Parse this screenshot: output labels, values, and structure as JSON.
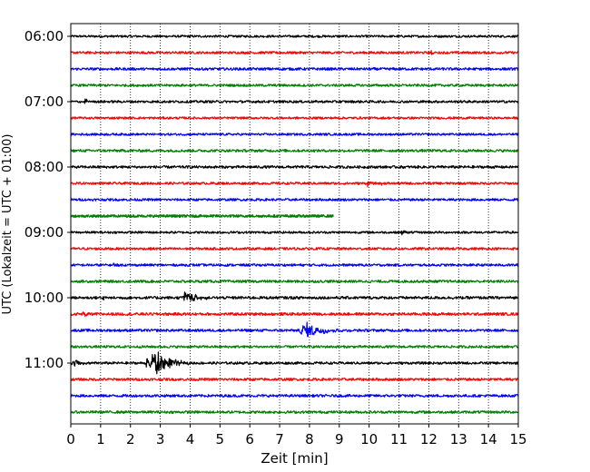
{
  "chart_data": {
    "type": "line",
    "title": "",
    "xlabel": "Zeit  [min]",
    "ylabel": "UTC (Lokalzeit = UTC + 01:00)",
    "xlim": [
      0,
      15
    ],
    "x_ticks": [
      0,
      1,
      2,
      3,
      4,
      5,
      6,
      7,
      8,
      9,
      10,
      11,
      12,
      13,
      14,
      15
    ],
    "y_tick_labels": [
      {
        "label": "06:00",
        "trace": 0
      },
      {
        "label": "07:00",
        "trace": 4
      },
      {
        "label": "08:00",
        "trace": 8
      },
      {
        "label": "09:00",
        "trace": 12
      },
      {
        "label": "10:00",
        "trace": 16
      },
      {
        "label": "11:00",
        "trace": 20
      }
    ],
    "grid": "vertical-dotted",
    "trace_minutes": 15,
    "colors": [
      "#000000",
      "#ff0000",
      "#0000ff",
      "#008000"
    ],
    "series": [
      {
        "start": "06:00",
        "end_min": 15,
        "noise": 1.2,
        "events": []
      },
      {
        "start": "06:15",
        "end_min": 15,
        "noise": 1.3,
        "events": [
          {
            "t": 12.1,
            "amp": 3,
            "dur": 0.2
          }
        ]
      },
      {
        "start": "06:30",
        "end_min": 15,
        "noise": 1.4,
        "events": []
      },
      {
        "start": "06:45",
        "end_min": 15,
        "noise": 1.3,
        "events": []
      },
      {
        "start": "07:00",
        "end_min": 15,
        "noise": 1.3,
        "events": [
          {
            "t": 0.45,
            "amp": 4,
            "dur": 0.4
          }
        ]
      },
      {
        "start": "07:15",
        "end_min": 15,
        "noise": 1.2,
        "events": []
      },
      {
        "start": "07:30",
        "end_min": 15,
        "noise": 1.2,
        "events": []
      },
      {
        "start": "07:45",
        "end_min": 15,
        "noise": 1.4,
        "events": []
      },
      {
        "start": "08:00",
        "end_min": 15,
        "noise": 1.4,
        "events": []
      },
      {
        "start": "08:15",
        "end_min": 15,
        "noise": 1.3,
        "events": [
          {
            "t": 9.95,
            "amp": 3,
            "dur": 0.2
          },
          {
            "t": 10.4,
            "amp": 2.5,
            "dur": 0.2
          }
        ]
      },
      {
        "start": "08:30",
        "end_min": 15,
        "noise": 1.3,
        "events": []
      },
      {
        "start": "08:45",
        "end_min": 8.8,
        "noise": 1.4,
        "events": []
      },
      {
        "start": "09:00",
        "end_min": 15,
        "noise": 1.2,
        "events": [
          {
            "t": 11.1,
            "amp": 3,
            "dur": 0.3
          }
        ]
      },
      {
        "start": "09:15",
        "end_min": 15,
        "noise": 1.3,
        "events": []
      },
      {
        "start": "09:30",
        "end_min": 15,
        "noise": 1.3,
        "events": [
          {
            "t": 1.4,
            "amp": 3,
            "dur": 0.4
          }
        ]
      },
      {
        "start": "09:45",
        "end_min": 15,
        "noise": 1.4,
        "events": []
      },
      {
        "start": "10:00",
        "end_min": 15,
        "noise": 1.5,
        "events": [
          {
            "t": 1.1,
            "amp": 3,
            "dur": 0.3
          },
          {
            "t": 3.85,
            "amp": 7,
            "dur": 1.0
          }
        ]
      },
      {
        "start": "10:15",
        "end_min": 15,
        "noise": 1.5,
        "events": [
          {
            "t": 0.4,
            "amp": 3,
            "dur": 0.5
          }
        ]
      },
      {
        "start": "10:30",
        "end_min": 15,
        "noise": 1.4,
        "events": [
          {
            "t": 7.85,
            "amp": 9,
            "dur": 1.6
          }
        ]
      },
      {
        "start": "10:45",
        "end_min": 15,
        "noise": 1.3,
        "events": []
      },
      {
        "start": "11:00",
        "end_min": 15,
        "noise": 1.3,
        "events": [
          {
            "t": 0.1,
            "amp": 5,
            "dur": 0.6
          },
          {
            "t": 2.55,
            "amp": 5,
            "dur": 0.4
          },
          {
            "t": 2.8,
            "amp": 16,
            "dur": 1.3
          }
        ]
      },
      {
        "start": "11:15",
        "end_min": 15,
        "noise": 1.4,
        "events": []
      },
      {
        "start": "11:30",
        "end_min": 15,
        "noise": 1.4,
        "events": []
      },
      {
        "start": "11:45",
        "end_min": 15,
        "noise": 1.4,
        "events": []
      }
    ]
  }
}
